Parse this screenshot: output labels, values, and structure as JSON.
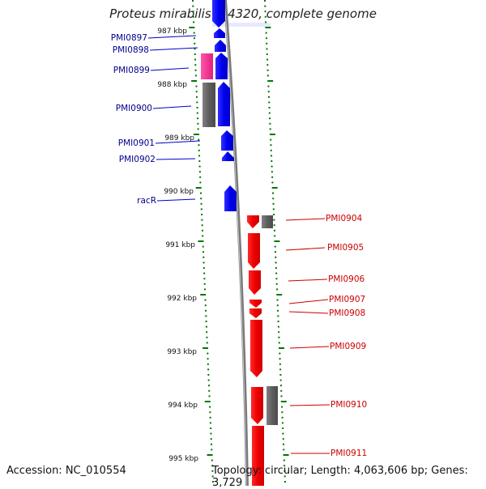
{
  "title": "Proteus mirabilis HI4320, complete genome",
  "accession_label": "Accession: NC_010554",
  "topology_label": "Topology: circular; Length: 4,063,606 bp; Genes: 3,729",
  "colors": {
    "forward_gene": "#0000ff",
    "reverse_gene": "#ff0000",
    "rna_gene": "#ff3399",
    "other_feature": "#666666",
    "tick": "#007700",
    "left_label": "#00008b",
    "right_label": "#cc0000",
    "backbone": "#888888"
  },
  "scale": {
    "unit": "kbp",
    "labels": [
      "987 kbp",
      "988 kbp",
      "989 kbp",
      "990 kbp",
      "991 kbp",
      "992 kbp",
      "993 kbp",
      "994 kbp",
      "995 kbp"
    ]
  },
  "genes_left": [
    {
      "id": "PMI0897",
      "label": "PMI0897"
    },
    {
      "id": "PMI0898",
      "label": "PMI0898"
    },
    {
      "id": "PMI0899",
      "label": "PMI0899"
    },
    {
      "id": "PMI0900",
      "label": "PMI0900"
    },
    {
      "id": "PMI0901",
      "label": "PMI0901"
    },
    {
      "id": "PMI0902",
      "label": "PMI0902"
    },
    {
      "id": "racR",
      "label": "racR"
    }
  ],
  "genes_right": [
    {
      "id": "PMI0904",
      "label": "PMI0904"
    },
    {
      "id": "PMI0905",
      "label": "PMI0905"
    },
    {
      "id": "PMI0906",
      "label": "PMI0906"
    },
    {
      "id": "PMI0907",
      "label": "PMI0907"
    },
    {
      "id": "PMI0908",
      "label": "PMI0908"
    },
    {
      "id": "PMI0909",
      "label": "PMI0909"
    },
    {
      "id": "PMI0910",
      "label": "PMI0910"
    },
    {
      "id": "PMI0911",
      "label": "PMI0911"
    }
  ]
}
